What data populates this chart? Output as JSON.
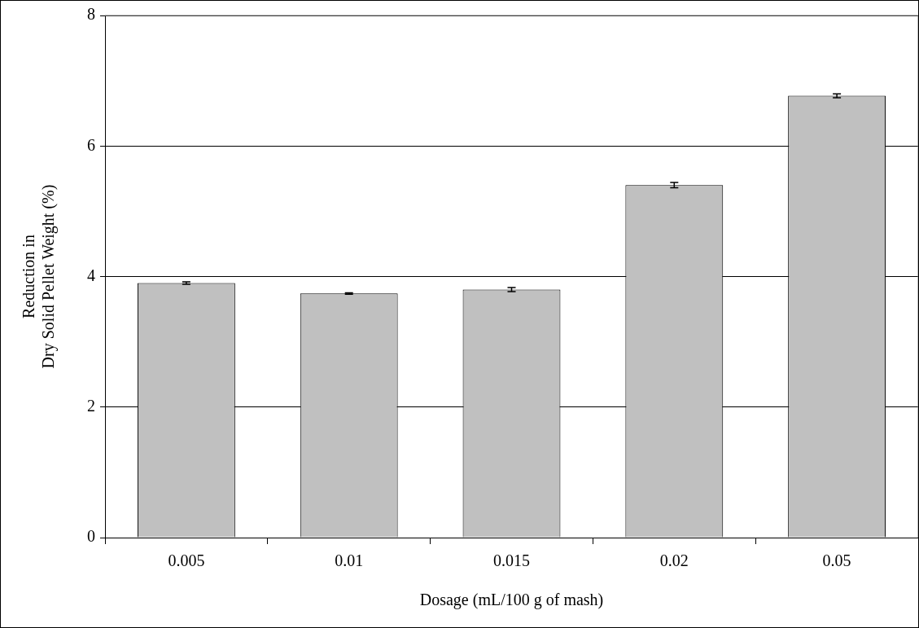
{
  "chart_data": {
    "type": "bar",
    "xlabel": "Dosage (mL/100 g of mash)",
    "ylabel": "Reduction in\nDry Solid Pellet Weight (%)",
    "categories": [
      "0.005",
      "0.01",
      "0.015",
      "0.02",
      "0.05"
    ],
    "values": [
      3.9,
      3.74,
      3.8,
      5.4,
      6.77
    ],
    "errors": [
      0.02,
      0.01,
      0.03,
      0.04,
      0.03
    ],
    "color": "#c0c0c0",
    "ylim": [
      0,
      8
    ],
    "yticks": [
      0,
      2,
      4,
      6,
      8
    ],
    "grid": "y",
    "legend": false
  }
}
